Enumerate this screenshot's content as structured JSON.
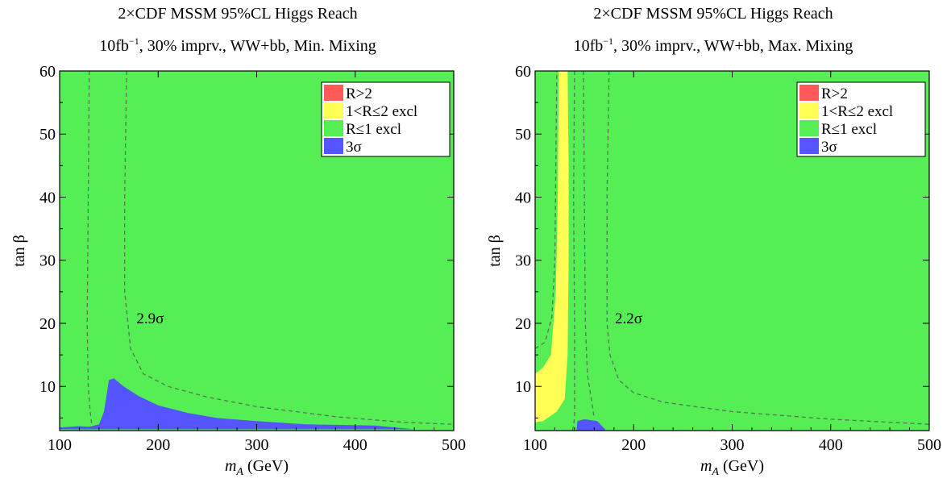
{
  "chart_data": [
    {
      "type": "contour",
      "title": "2×CDF MSSM 95%CL Higgs Reach",
      "subtitle": {
        "pre": "10fb",
        "sup": "−1",
        "post": ", 30% imprv., WW+bb, Min. Mixing"
      },
      "xlabel": {
        "main": "m",
        "sub": "A",
        "rest": " (GeV)"
      },
      "ylabel": "tan β",
      "xlim": [
        100,
        500
      ],
      "ylim": [
        3,
        60
      ],
      "xticks": [
        100,
        200,
        300,
        400,
        500
      ],
      "yticks": [
        10,
        20,
        30,
        40,
        50,
        60
      ],
      "legend": {
        "position": "top-right",
        "entries": [
          {
            "label": "R>2",
            "color": "#ff5a5a"
          },
          {
            "label": "1<R≤2 excl",
            "color": "#ffff55"
          },
          {
            "label": "R≤1 excl",
            "color": "#55ee55"
          },
          {
            "label": "3σ",
            "color": "#5555ff"
          }
        ]
      },
      "background_region": "R≤1 excl",
      "regions": [
        {
          "label": "3σ",
          "color": "#5555ff",
          "points": [
            [
              100,
              3.5
            ],
            [
              120,
              3.7
            ],
            [
              130,
              3.6
            ],
            [
              140,
              4
            ],
            [
              145,
              6
            ],
            [
              148,
              9
            ],
            [
              150,
              11
            ],
            [
              155,
              11.3
            ],
            [
              165,
              10
            ],
            [
              180,
              8.5
            ],
            [
              200,
              7
            ],
            [
              230,
              5.8
            ],
            [
              260,
              5
            ],
            [
              300,
              4.5
            ],
            [
              350,
              4
            ],
            [
              420,
              3.8
            ],
            [
              460,
              3.2
            ],
            [
              100,
              3.2
            ]
          ]
        }
      ],
      "contours": [
        {
          "label": "2.9σ",
          "style": "dashed",
          "points": [
            [
              130,
              60
            ],
            [
              129,
              40
            ],
            [
              128,
              20
            ],
            [
              129,
              10
            ],
            [
              131,
              6
            ],
            [
              133,
              3.4
            ]
          ]
        },
        {
          "label": "2.9σ",
          "style": "dashed",
          "points": [
            [
              168,
              60
            ],
            [
              166,
              40
            ],
            [
              166,
              25
            ],
            [
              172,
              16
            ],
            [
              185,
              12
            ],
            [
              210,
              10
            ],
            [
              250,
              8.3
            ],
            [
              300,
              6.8
            ],
            [
              380,
              5.2
            ],
            [
              450,
              4.3
            ],
            [
              500,
              4
            ]
          ]
        }
      ],
      "annotation": {
        "text": "2.9σ",
        "x": 178,
        "y": 20
      }
    },
    {
      "type": "contour",
      "title": "2×CDF MSSM 95%CL Higgs Reach",
      "subtitle": {
        "pre": "10fb",
        "sup": "−1",
        "post": ", 30% imprv., WW+bb, Max. Mixing"
      },
      "xlabel": {
        "main": "m",
        "sub": "A",
        "rest": " (GeV)"
      },
      "ylabel": "tan β",
      "xlim": [
        100,
        500
      ],
      "ylim": [
        3,
        60
      ],
      "xticks": [
        100,
        200,
        300,
        400,
        500
      ],
      "yticks": [
        10,
        20,
        30,
        40,
        50,
        60
      ],
      "legend": {
        "position": "top-right",
        "entries": [
          {
            "label": "R>2",
            "color": "#ff5a5a"
          },
          {
            "label": "1<R≤2 excl",
            "color": "#ffff55"
          },
          {
            "label": "R≤1 excl",
            "color": "#55ee55"
          },
          {
            "label": "3σ",
            "color": "#5555ff"
          }
        ]
      },
      "background_region": "R≤1 excl",
      "regions": [
        {
          "label": "1<R≤2 excl",
          "color": "#ffff55",
          "points": [
            [
              124,
              60
            ],
            [
              133,
              60
            ],
            [
              134,
              45
            ],
            [
              134,
              30
            ],
            [
              133,
              15
            ],
            [
              130,
              8
            ],
            [
              122,
              6
            ],
            [
              108,
              4.5
            ],
            [
              100,
              4.3
            ],
            [
              100,
              12
            ],
            [
              108,
              13
            ],
            [
              116,
              15
            ],
            [
              121,
              25
            ],
            [
              123,
              40
            ]
          ]
        },
        {
          "label": "3σ",
          "color": "#5555ff",
          "points": [
            [
              142,
              3
            ],
            [
              143,
              4.5
            ],
            [
              150,
              4.8
            ],
            [
              163,
              4.5
            ],
            [
              171,
              3.2
            ],
            [
              171,
              3
            ]
          ]
        }
      ],
      "contours": [
        {
          "label": "2.2σ",
          "style": "dashed",
          "points": [
            [
              100,
              16
            ],
            [
              110,
              17
            ],
            [
              117,
              21
            ],
            [
              120,
              30
            ],
            [
              121,
              45
            ],
            [
              122,
              60
            ]
          ]
        },
        {
          "label": "2.2σ",
          "style": "dashed",
          "points": [
            [
              140,
              60
            ],
            [
              139,
              40
            ],
            [
              140,
              20
            ],
            [
              140,
              10
            ],
            [
              140,
              5
            ],
            [
              138,
              3
            ]
          ]
        },
        {
          "label": "2.2σ",
          "style": "dashed",
          "points": [
            [
              149,
              60
            ],
            [
              150,
              40
            ],
            [
              151,
              20
            ],
            [
              153,
              12
            ],
            [
              158,
              7
            ],
            [
              160,
              5
            ]
          ]
        },
        {
          "label": "2.2σ",
          "style": "dashed",
          "points": [
            [
              175,
              60
            ],
            [
              173,
              40
            ],
            [
              173,
              20
            ],
            [
              176,
              15
            ],
            [
              185,
              11
            ],
            [
              200,
              9
            ],
            [
              230,
              7.5
            ],
            [
              300,
              6
            ],
            [
              400,
              4.8
            ],
            [
              500,
              4
            ]
          ]
        }
      ],
      "annotation": {
        "text": "2.2σ",
        "x": 181,
        "y": 20
      }
    }
  ]
}
